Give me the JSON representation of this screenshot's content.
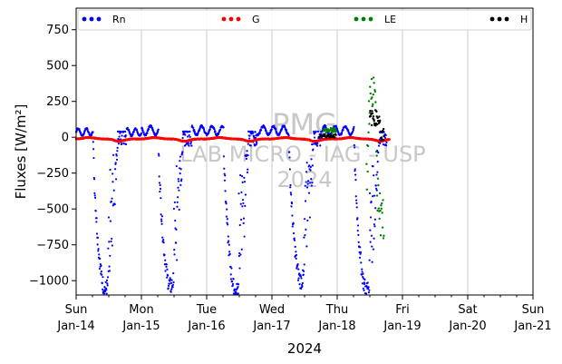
{
  "chart_data": {
    "type": "scatter",
    "title": "",
    "xlabel": "2024",
    "ylabel": "Fluxes [W/m²]",
    "ylim": [
      -1100,
      900
    ],
    "xlim": [
      0,
      7
    ],
    "grid": "vertical",
    "legend_placement": "top",
    "y_ticks": [
      "750",
      "500",
      "250",
      "0",
      "−250",
      "−500",
      "−750",
      "−1000"
    ],
    "y_tick_values": [
      750,
      500,
      250,
      0,
      -250,
      -500,
      -750,
      -1000
    ],
    "x_ticks": [
      {
        "day": "Sun",
        "date": "Jan-14"
      },
      {
        "day": "Mon",
        "date": "Jan-15"
      },
      {
        "day": "Tue",
        "date": "Jan-16"
      },
      {
        "day": "Wed",
        "date": "Jan-17"
      },
      {
        "day": "Thu",
        "date": "Jan-18"
      },
      {
        "day": "Fri",
        "date": "Jan-19"
      },
      {
        "day": "Sat",
        "date": "Jan-20"
      },
      {
        "day": "Sun",
        "date": "Jan-21"
      }
    ],
    "watermark": [
      "PMG",
      "LAB MICRO - IAG - USP",
      "2024"
    ],
    "series": [
      {
        "name": "Rn",
        "color": "#0000ff"
      },
      {
        "name": "G",
        "color": "#ff0000"
      },
      {
        "name": "LE",
        "color": "#008000"
      },
      {
        "name": "H",
        "color": "#000000"
      }
    ]
  }
}
